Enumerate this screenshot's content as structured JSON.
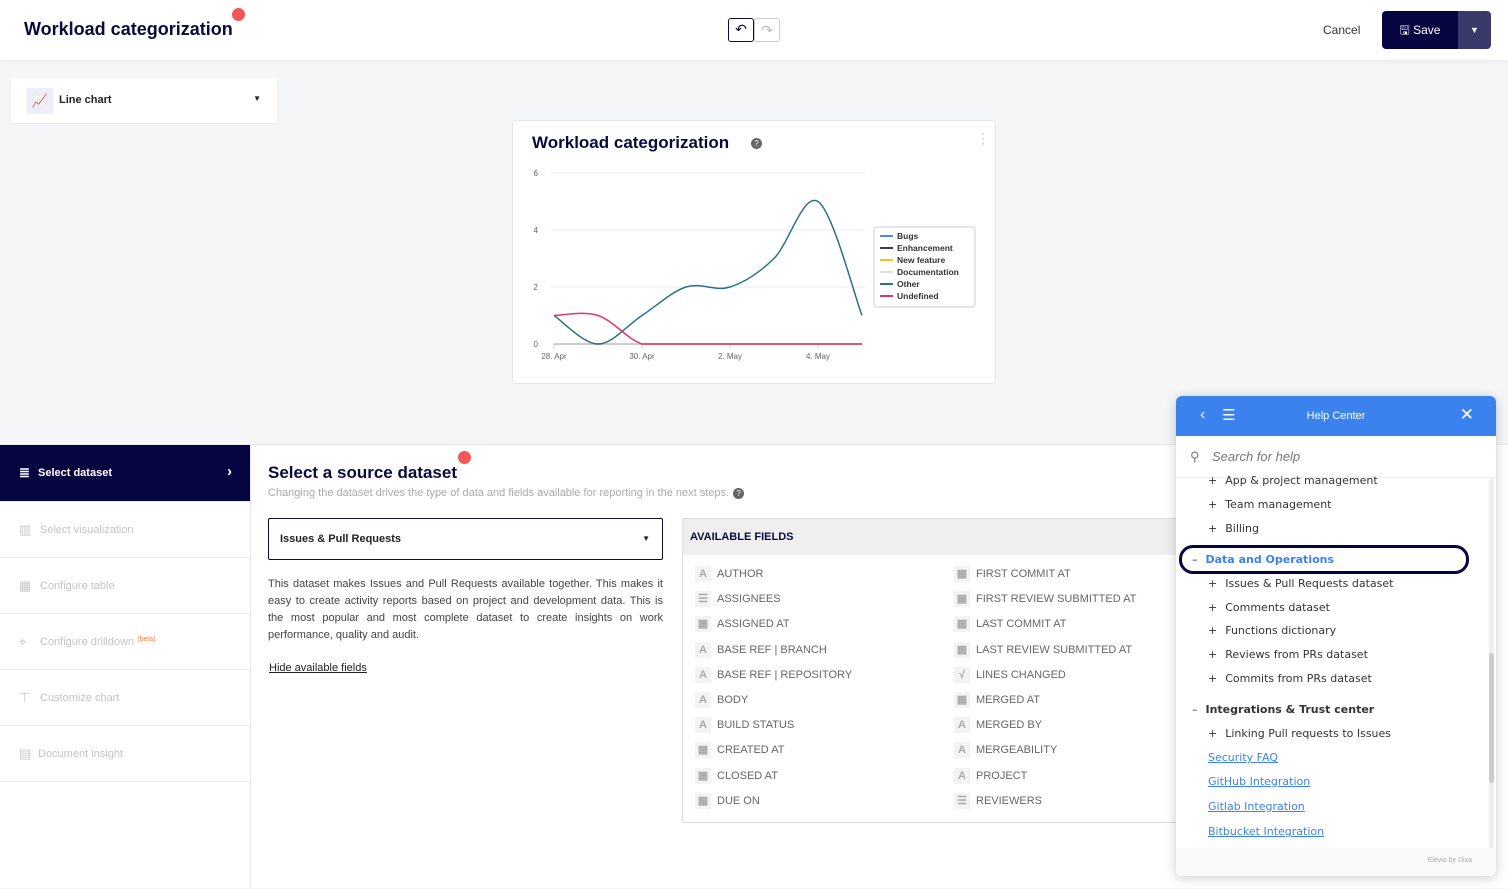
{
  "header": {
    "title": "Workload categorization",
    "cancel": "Cancel",
    "save": "Save",
    "undo_icon": "undo-icon",
    "redo_icon": "redo-icon"
  },
  "visualization_picker": {
    "selected": "Line chart",
    "icon": "line-chart-icon"
  },
  "chart_card": {
    "title": "Workload categorization"
  },
  "chart_data": {
    "type": "line",
    "title": "Workload categorization",
    "x": [
      "28. Apr",
      "29. Apr",
      "30. Apr",
      "1. May",
      "2. May",
      "3. May",
      "4. May",
      "5. May"
    ],
    "x_tick_labels": [
      "28. Apr",
      "30. Apr",
      "2. May",
      "4. May"
    ],
    "y_ticks": [
      0,
      2,
      4,
      6
    ],
    "ylim": [
      0,
      6
    ],
    "grid": true,
    "legend": "right",
    "series": [
      {
        "name": "Bugs",
        "color": "#4a8cf7",
        "values": [
          0,
          0,
          0,
          0,
          0,
          0,
          0,
          0
        ]
      },
      {
        "name": "Enhancement",
        "color": "#3a3a5a",
        "values": [
          0,
          0,
          0,
          0,
          0,
          0,
          0,
          0
        ]
      },
      {
        "name": "New feature",
        "color": "#f5c518",
        "values": [
          0,
          0,
          0,
          0,
          0,
          0,
          0,
          0
        ]
      },
      {
        "name": "Documentation",
        "color": "#d8dcf5",
        "values": [
          0,
          0,
          0,
          0,
          0,
          0,
          0,
          0
        ]
      },
      {
        "name": "Other",
        "color": "#2a7088",
        "values": [
          1,
          0,
          1,
          2,
          2,
          3,
          5,
          1
        ]
      },
      {
        "name": "Undefined",
        "color": "#e0366a",
        "values": [
          1,
          1,
          0,
          0,
          0,
          0,
          0,
          0
        ]
      }
    ]
  },
  "steps": [
    {
      "label": "Select dataset",
      "active": true
    },
    {
      "label": "Select visualization"
    },
    {
      "label": "Configure table"
    },
    {
      "label": "Configure drilldown",
      "badge": "(beta)"
    },
    {
      "label": "Customize chart"
    },
    {
      "label": "Document insight"
    }
  ],
  "dataset": {
    "heading": "Select a source dataset",
    "subtitle": "Changing the dataset drives the type of data and fields available for reporting in the next steps.",
    "selected": "Issues & Pull Requests",
    "description": "This dataset makes Issues and Pull Requests available together. This makes it easy to create activity reports based on project and development data. This is the most popular and most complete dataset to create insights on work performance, quality and audit.",
    "hide_link": "Hide available fields",
    "fields_header": "AVAILABLE FIELDS",
    "fields_left": [
      {
        "label": "AUTHOR",
        "type": "text"
      },
      {
        "label": "ASSIGNEES",
        "type": "list"
      },
      {
        "label": "ASSIGNED AT",
        "type": "date"
      },
      {
        "label": "BASE REF | BRANCH",
        "type": "text"
      },
      {
        "label": "BASE REF | REPOSITORY",
        "type": "text"
      },
      {
        "label": "BODY",
        "type": "text"
      },
      {
        "label": "BUILD STATUS",
        "type": "text"
      },
      {
        "label": "CREATED AT",
        "type": "date"
      },
      {
        "label": "CLOSED AT",
        "type": "date"
      },
      {
        "label": "DUE ON",
        "type": "date"
      }
    ],
    "fields_right": [
      {
        "label": "FIRST COMMIT AT",
        "type": "date"
      },
      {
        "label": "FIRST REVIEW SUBMITTED AT",
        "type": "date"
      },
      {
        "label": "LAST COMMIT AT",
        "type": "date"
      },
      {
        "label": "LAST REVIEW SUBMITTED AT",
        "type": "date"
      },
      {
        "label": "LINES CHANGED",
        "type": "formula"
      },
      {
        "label": "MERGED AT",
        "type": "date"
      },
      {
        "label": "MERGED BY",
        "type": "text"
      },
      {
        "label": "MERGEABILITY",
        "type": "text"
      },
      {
        "label": "PROJECT",
        "type": "text"
      },
      {
        "label": "REVIEWERS",
        "type": "list"
      }
    ]
  },
  "help": {
    "title": "Help Center",
    "search_placeholder": "Search for help",
    "items": [
      {
        "label": "App & project management",
        "kind": "item"
      },
      {
        "label": "Team management",
        "kind": "item"
      },
      {
        "label": "Billing",
        "kind": "item"
      },
      {
        "label": "Data and Operations",
        "kind": "section-active"
      },
      {
        "label": "Issues & Pull Requests dataset",
        "kind": "item"
      },
      {
        "label": "Comments dataset",
        "kind": "item"
      },
      {
        "label": "Functions dictionary",
        "kind": "item"
      },
      {
        "label": "Reviews from PRs dataset",
        "kind": "item"
      },
      {
        "label": "Commits from PRs dataset",
        "kind": "item"
      },
      {
        "label": "Integrations & Trust center",
        "kind": "section"
      },
      {
        "label": "Linking Pull requests to Issues",
        "kind": "item"
      },
      {
        "label": "Security FAQ",
        "kind": "link"
      },
      {
        "label": "GitHub Integration",
        "kind": "link"
      },
      {
        "label": "Gitlab Integration",
        "kind": "link"
      },
      {
        "label": "Bitbucket Integration",
        "kind": "link"
      }
    ],
    "footer": "Elevio by Dixa"
  }
}
